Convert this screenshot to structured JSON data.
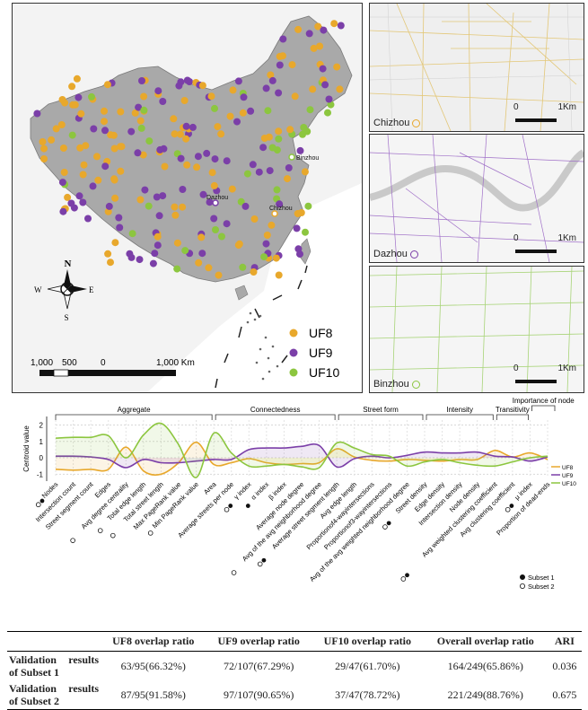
{
  "map": {
    "binzhou_label": "Binzhou",
    "dazhou_label": "Dazhou",
    "chizhou_label": "Chizhou",
    "compass": {
      "n": "N",
      "s": "S",
      "w": "W",
      "e": "E"
    },
    "scale_labels": [
      "1,000",
      "500",
      "0",
      "1,000 Km"
    ],
    "legend": [
      {
        "label": "UF8",
        "color": "#E8A82C"
      },
      {
        "label": "UF9",
        "color": "#7B3FA8"
      },
      {
        "label": "UF10",
        "color": "#8CC63F"
      }
    ]
  },
  "insets": [
    {
      "city": "Chizhou",
      "scale_zero": "0",
      "scale_end": "1Km",
      "color": "#E8A82C"
    },
    {
      "city": "Dazhou",
      "scale_zero": "0",
      "scale_end": "1Km",
      "color": "#7B3FA8"
    },
    {
      "city": "Binzhou",
      "scale_zero": "0",
      "scale_end": "1Km",
      "color": "#8CC63F"
    }
  ],
  "chart_data": {
    "type": "line",
    "ylabel": "Centroid value",
    "ylim": [
      -1.2,
      2.3
    ],
    "yticks": [
      2,
      1,
      0,
      -1
    ],
    "grid": true,
    "legend_position": "right",
    "groups": [
      {
        "label": "Aggregate",
        "from": 0,
        "to": 9
      },
      {
        "label": "Connectedness",
        "from": 9,
        "to": 16
      },
      {
        "label": "Street form",
        "from": 16,
        "to": 21
      },
      {
        "label": "Intensity",
        "from": 21,
        "to": 25
      },
      {
        "label": "Transitivity",
        "from": 25,
        "to": 27
      },
      {
        "label": "Importance of node",
        "from": 27,
        "to": 28
      }
    ],
    "categories": [
      {
        "label": "Nodes",
        "s1": true,
        "s2": true
      },
      {
        "label": "Intersection count",
        "s1": false,
        "s2": false
      },
      {
        "label": "Street segment count",
        "s1": false,
        "s2": false
      },
      {
        "label": "Edges",
        "s1": false,
        "s2": false
      },
      {
        "label": "Avg degree centrality",
        "s1": false,
        "s2": true
      },
      {
        "label": "Total edge length",
        "s1": false,
        "s2": true
      },
      {
        "label": "Total street length",
        "s1": false,
        "s2": true
      },
      {
        "label": "Max PageRank value",
        "s1": false,
        "s2": false
      },
      {
        "label": "Min PageRank value",
        "s1": false,
        "s2": true
      },
      {
        "label": "Area",
        "s1": false,
        "s2": false
      },
      {
        "label": "Average streets per node",
        "s1": false,
        "s2": false
      },
      {
        "label": "γ index",
        "s1": true,
        "s2": true
      },
      {
        "label": "α index",
        "s1": true,
        "s2": false
      },
      {
        "label": "β index",
        "s1": false,
        "s2": false
      },
      {
        "label": "Average node degree",
        "s1": false,
        "s2": false
      },
      {
        "label": "Avg of the avg neighborhood degree",
        "s1": false,
        "s2": true
      },
      {
        "label": "Average street segment length",
        "s1": true,
        "s2": true
      },
      {
        "label": "Avg edge length",
        "s1": false,
        "s2": false
      },
      {
        "label": "Proportionof4-wayintersections",
        "s1": false,
        "s2": false
      },
      {
        "label": "Proportionof3-wayintersections",
        "s1": false,
        "s2": false
      },
      {
        "label": "Avg of the avg weighted neighborhood degree",
        "s1": false,
        "s2": false
      },
      {
        "label": "Street density",
        "s1": true,
        "s2": true
      },
      {
        "label": "Edge density",
        "s1": false,
        "s2": false
      },
      {
        "label": "Intersection density",
        "s1": false,
        "s2": false
      },
      {
        "label": "Node density",
        "s1": false,
        "s2": false
      },
      {
        "label": "Avg weighted clustering coefficient",
        "s1": true,
        "s2": true
      },
      {
        "label": "Avg clustering coefficient",
        "s1": false,
        "s2": false
      },
      {
        "label": "μ index",
        "s1": true,
        "s2": true
      },
      {
        "label": "Proportion of dead-ends",
        "s1": false,
        "s2": false
      }
    ],
    "series": [
      {
        "name": "UF8",
        "color": "#E8A82C",
        "values": [
          -0.7,
          -0.75,
          -0.7,
          -0.7,
          0.65,
          -0.8,
          -1.0,
          -0.3,
          0.95,
          -0.4,
          -0.3,
          -0.05,
          -0.3,
          -0.4,
          -0.35,
          -0.3,
          0.55,
          0.05,
          -0.15,
          -0.2,
          -0.1,
          -0.15,
          -0.2,
          -0.1,
          -0.1,
          0.45,
          0.05,
          0.3,
          -0.1
        ]
      },
      {
        "name": "UF9",
        "color": "#7B3FA8",
        "values": [
          0.1,
          0.1,
          0.05,
          -0.1,
          -0.6,
          -0.1,
          -0.3,
          -0.3,
          -0.2,
          -0.1,
          -0.1,
          0.5,
          0.6,
          0.6,
          0.7,
          0.75,
          -0.55,
          -0.05,
          0.1,
          0.0,
          0.15,
          0.35,
          0.3,
          0.3,
          0.35,
          0.1,
          0.05,
          -0.2,
          0.05
        ]
      },
      {
        "name": "UF10",
        "color": "#8CC63F",
        "values": [
          1.2,
          1.25,
          1.25,
          1.35,
          0.0,
          1.4,
          2.1,
          0.8,
          -1.2,
          1.5,
          0.3,
          -0.5,
          -0.5,
          -0.4,
          -0.55,
          -0.6,
          0.9,
          0.6,
          0.2,
          0.1,
          -0.5,
          -0.25,
          -0.1,
          -0.3,
          -0.45,
          -0.5,
          -0.25,
          0.0,
          0.1
        ]
      }
    ],
    "subset_legend": [
      {
        "label": "Subset 1",
        "filled": true
      },
      {
        "label": "Subset 2",
        "filled": false
      }
    ]
  },
  "table": {
    "headers": [
      "",
      "UF8 overlap ratio",
      "UF9 overlap ratio",
      "UF10 overlap ratio",
      "Overall overlap ratio",
      "ARI"
    ],
    "rows": [
      {
        "label_a": "Validation",
        "label_b": "results",
        "label_c": "of Subset 1",
        "cells": [
          "63/95(66.32%)",
          "72/107(67.29%)",
          "29/47(61.70%)",
          "164/249(65.86%)",
          "0.036"
        ]
      },
      {
        "label_a": "Validation",
        "label_b": "results",
        "label_c": "of Subset 2",
        "cells": [
          "87/95(91.58%)",
          "97/107(90.65%)",
          "37/47(78.72%)",
          "221/249(88.76%)",
          "0.675"
        ]
      }
    ]
  }
}
